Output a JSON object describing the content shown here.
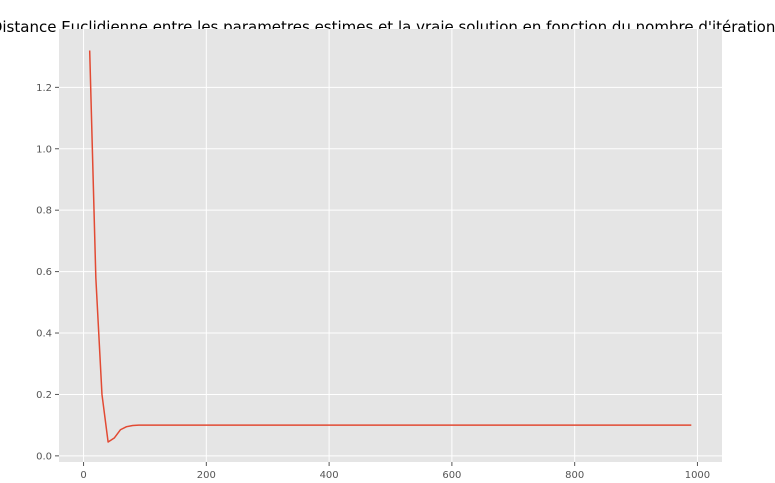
{
  "chart_data": {
    "type": "line",
    "title": "Distance Euclidienne entre les parametres estimes et la vraie solution en fonction du nombre d'itérations",
    "xlabel": "",
    "ylabel": "",
    "xlim": [
      -40,
      1040
    ],
    "ylim": [
      -0.02,
      1.39
    ],
    "grid": true,
    "x_ticks": [
      0,
      200,
      400,
      600,
      800,
      1000
    ],
    "y_ticks": [
      0.0,
      0.2,
      0.4,
      0.6,
      0.8,
      1.0,
      1.2
    ],
    "x_tick_labels": [
      "0",
      "200",
      "400",
      "600",
      "800",
      "1000"
    ],
    "y_tick_labels": [
      "0.0",
      "0.2",
      "0.4",
      "0.6",
      "0.8",
      "1.0",
      "1.2"
    ],
    "series": [
      {
        "x": [
          10,
          20,
          30,
          40,
          50,
          60,
          70,
          80,
          90,
          100,
          150,
          200,
          300,
          400,
          500,
          600,
          700,
          800,
          900,
          990
        ],
        "values": [
          1.32,
          0.58,
          0.2,
          0.045,
          0.058,
          0.085,
          0.095,
          0.099,
          0.1,
          0.1,
          0.1,
          0.1,
          0.1,
          0.1,
          0.1,
          0.1,
          0.1,
          0.1,
          0.1,
          0.1
        ]
      }
    ]
  },
  "colors": {
    "background": "#e5e5e5",
    "grid": "#ffffff",
    "line": "#e24a33",
    "tick": "#555555"
  }
}
